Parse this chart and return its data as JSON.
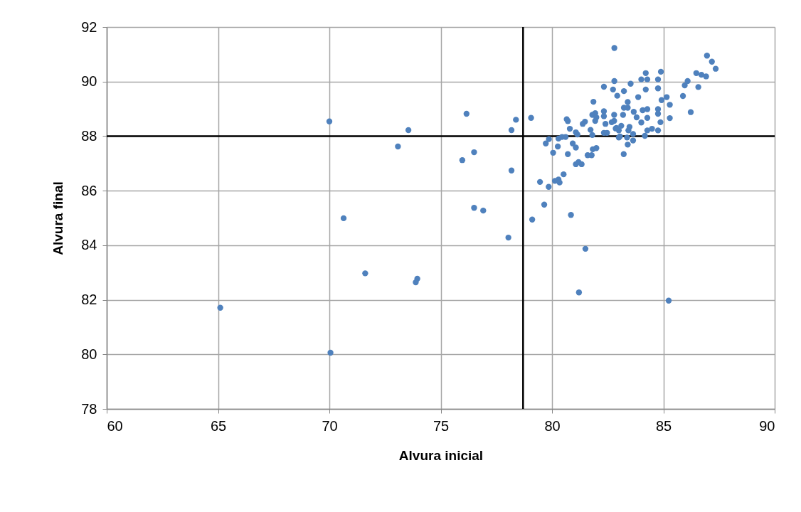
{
  "chart_data": {
    "type": "scatter",
    "xlabel": "Alvura inicial",
    "ylabel": "Alvura final",
    "xlim": [
      60,
      90
    ],
    "xticks": [
      60,
      65,
      70,
      75,
      80,
      85,
      90
    ],
    "ylim": [
      78,
      92
    ],
    "yticks": [
      78,
      80,
      82,
      84,
      86,
      88,
      90,
      92
    ],
    "grid": true,
    "marker": "circle",
    "ref_lines": [
      {
        "axis": "x",
        "value": 78.7,
        "color": "#000000"
      },
      {
        "axis": "y",
        "value": 88,
        "color": "#000000"
      }
    ],
    "series": [
      {
        "color": "#4f81bd",
        "x": [
          70.0,
          73.55,
          76.16,
          78.38,
          78.18,
          73.08,
          76.5,
          75.97,
          78.18,
          70.64,
          76.5,
          76.91,
          78.04,
          71.61,
          73.95,
          73.88,
          65.1,
          70.05,
          82.8,
          82.8,
          82.33,
          82.74,
          82.93,
          83.23,
          81.86,
          83.23,
          79.06,
          80.66,
          80.71,
          80.8,
          81.38,
          81.48,
          81.81,
          81.94,
          81.99,
          81.94,
          82.33,
          82.33,
          82.4,
          82.79,
          82.79,
          82.68,
          83.19,
          81.73,
          81.81,
          82.33,
          82.47,
          82.86,
          83.0,
          83.11,
          81.07,
          81.14,
          80.45,
          80.61,
          80.29,
          79.86,
          79.72,
          80.26,
          80.93,
          81.07,
          80.05,
          80.71,
          81.83,
          81.99,
          81.78,
          81.6,
          83.0,
          83.22,
          81.07,
          81.19,
          81.33,
          80.52,
          80.13,
          80.29,
          80.34,
          79.85,
          79.46,
          79.65,
          79.11,
          80.85,
          83.53,
          84.01,
          84.28,
          84.21,
          84.76,
          84.89,
          84.21,
          84.76,
          83.87,
          83.4,
          83.4,
          83.67,
          83.8,
          84.01,
          84.07,
          84.28,
          84.28,
          84.76,
          84.76,
          84.87,
          84.92,
          85.15,
          85.29,
          85.29,
          82.89,
          83.48,
          83.43,
          83.64,
          83.05,
          83.37,
          83.64,
          83.4,
          84.17,
          84.28,
          84.49,
          84.76,
          85.88,
          85.96,
          86.09,
          86.23,
          86.57,
          86.48,
          86.71,
          86.92,
          86.96,
          87.18,
          87.35,
          85.24,
          81.21,
          81.5
        ],
        "values": [
          88.54,
          88.22,
          88.82,
          88.6,
          88.22,
          87.62,
          87.41,
          87.12,
          86.74,
          84.99,
          85.37,
          85.27,
          84.28,
          82.97,
          82.77,
          82.64,
          81.71,
          80.06,
          91.23,
          90.02,
          89.81,
          89.71,
          89.48,
          89.65,
          89.26,
          89.04,
          88.67,
          88.62,
          88.55,
          88.27,
          88.45,
          88.53,
          88.78,
          88.84,
          88.69,
          88.56,
          88.91,
          88.73,
          88.45,
          88.78,
          88.56,
          88.51,
          88.78,
          88.23,
          88.04,
          88.12,
          88.12,
          88.28,
          88.21,
          88.38,
          88.14,
          88.06,
          87.97,
          87.97,
          87.91,
          87.89,
          87.73,
          87.62,
          87.73,
          87.58,
          87.39,
          87.34,
          87.52,
          87.56,
          87.3,
          87.3,
          87.95,
          87.34,
          86.97,
          87.05,
          86.97,
          86.6,
          86.36,
          86.41,
          86.3,
          86.14,
          86.32,
          85.49,
          84.94,
          85.11,
          89.92,
          90.08,
          90.08,
          90.31,
          90.08,
          90.36,
          89.71,
          89.75,
          89.43,
          89.25,
          89.04,
          88.89,
          88.69,
          88.5,
          88.95,
          88.99,
          88.67,
          88.99,
          88.82,
          88.51,
          89.32,
          89.43,
          89.15,
          88.66,
          88.3,
          88.34,
          88.21,
          88.08,
          87.99,
          87.95,
          87.84,
          87.69,
          88.01,
          88.21,
          88.27,
          88.21,
          89.47,
          89.86,
          90.02,
          88.88,
          89.8,
          90.31,
          90.25,
          90.19,
          90.95,
          90.73,
          90.47,
          81.97,
          82.27,
          83.87
        ]
      }
    ]
  }
}
